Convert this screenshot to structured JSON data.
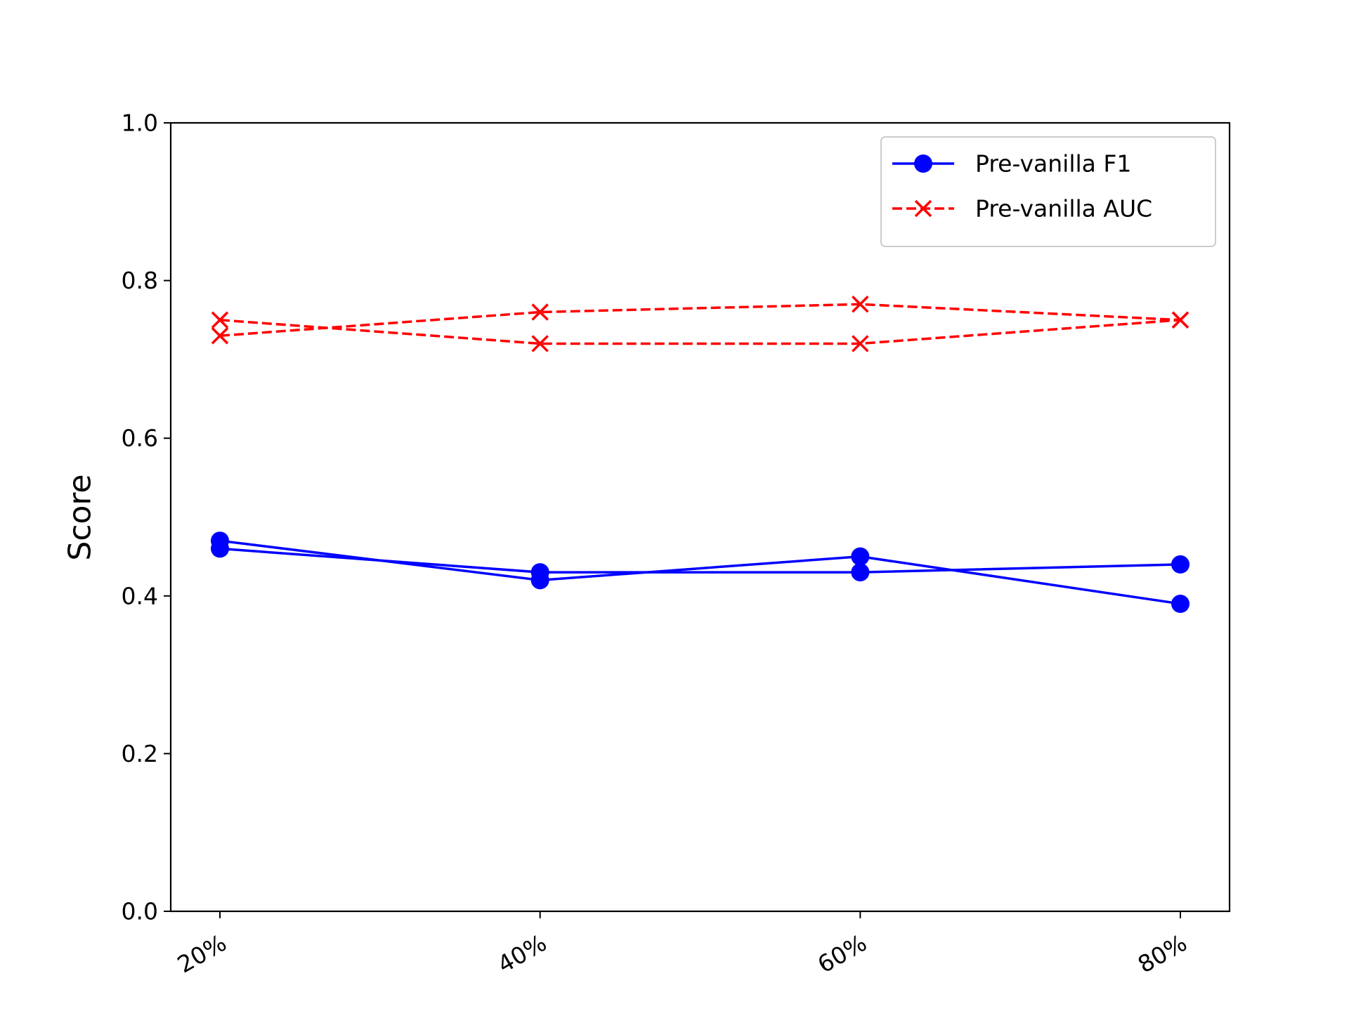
{
  "chart_data": {
    "type": "line",
    "title": "",
    "xlabel": "",
    "ylabel": "Score",
    "categories": [
      "20%",
      "40%",
      "60%",
      "80%"
    ],
    "ylim": [
      0.0,
      1.0
    ],
    "yticks": [
      "0.0",
      "0.2",
      "0.4",
      "0.6",
      "0.8",
      "1.0"
    ],
    "grid": false,
    "legend_position": "top-right",
    "series": [
      {
        "name": "Pre-vanilla F1",
        "color": "#0000ff",
        "style": "solid",
        "marker": "circle",
        "values": [
          0.47,
          0.42,
          0.45,
          0.39
        ]
      },
      {
        "name": "",
        "legend": false,
        "color": "#0000ff",
        "style": "solid",
        "marker": "circle",
        "values": [
          0.46,
          0.43,
          0.43,
          0.44
        ]
      },
      {
        "name": "Pre-vanilla AUC",
        "color": "#ff0000",
        "style": "dashed",
        "marker": "x",
        "values": [
          0.75,
          0.72,
          0.72,
          0.75
        ]
      },
      {
        "name": "",
        "legend": false,
        "color": "#ff0000",
        "style": "dashed",
        "marker": "x",
        "values": [
          0.73,
          0.76,
          0.77,
          0.75
        ]
      }
    ]
  }
}
